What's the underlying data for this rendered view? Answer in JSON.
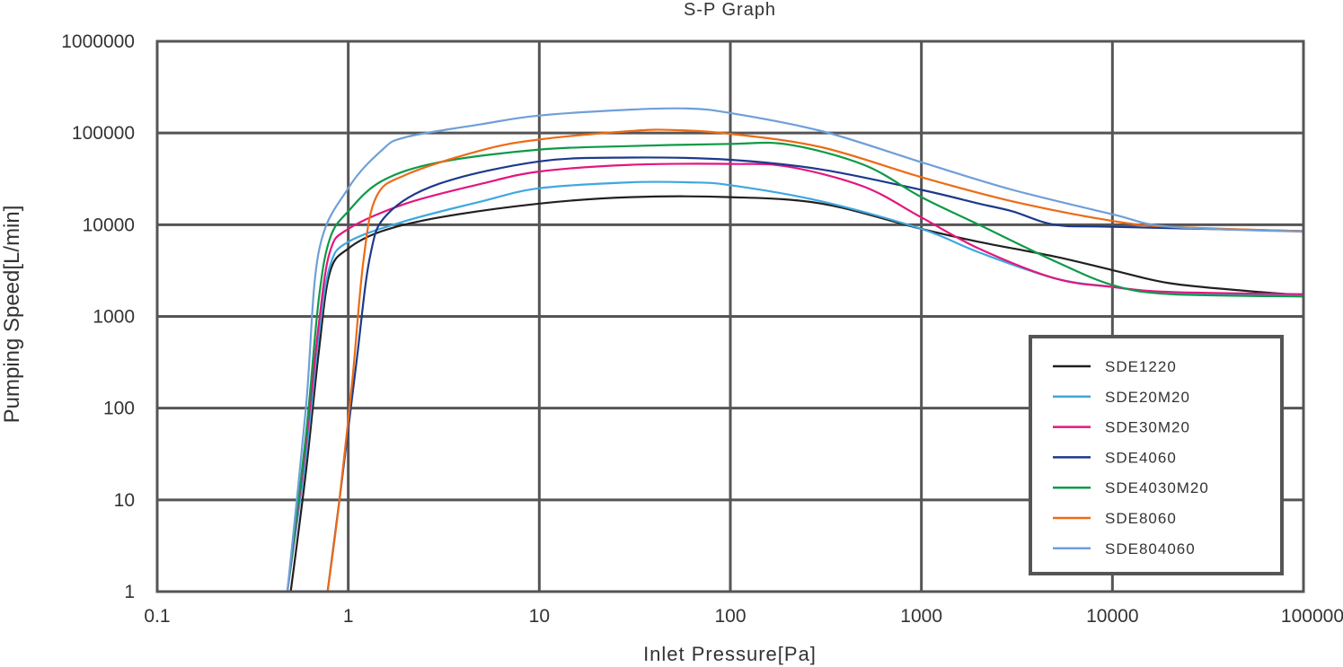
{
  "chart_data": {
    "type": "line",
    "title": "S-P Graph",
    "xlabel": "Inlet Pressure[Pa]",
    "ylabel": "Pumping Speed[L/min]",
    "x_scale": "log",
    "y_scale": "log",
    "xlim": [
      0.1,
      100000
    ],
    "ylim": [
      1,
      1000000
    ],
    "x_ticks": [
      "0.1",
      "1",
      "10",
      "100",
      "1000",
      "10000",
      "100000"
    ],
    "y_ticks": [
      "1",
      "10",
      "100",
      "1000",
      "10000",
      "100000",
      "1000000"
    ],
    "grid": true,
    "legend_position": "lower-right",
    "series": [
      {
        "name": "SDE1220",
        "color": "#231f20",
        "points": [
          [
            0.5,
            1
          ],
          [
            0.6,
            20
          ],
          [
            0.7,
            400
          ],
          [
            0.8,
            3000
          ],
          [
            1,
            5500
          ],
          [
            1.5,
            8500
          ],
          [
            3,
            12000
          ],
          [
            10,
            17000
          ],
          [
            30,
            20000
          ],
          [
            100,
            20000
          ],
          [
            300,
            17000
          ],
          [
            1000,
            9000
          ],
          [
            2000,
            6500
          ],
          [
            5000,
            4500
          ],
          [
            10000,
            3200
          ],
          [
            20000,
            2300
          ],
          [
            50000,
            1900
          ],
          [
            100000,
            1700
          ]
        ]
      },
      {
        "name": "SDE20M20",
        "color": "#3ea8df",
        "points": [
          [
            0.48,
            1
          ],
          [
            0.6,
            30
          ],
          [
            0.7,
            600
          ],
          [
            0.8,
            3500
          ],
          [
            1,
            6500
          ],
          [
            2,
            11000
          ],
          [
            5,
            18000
          ],
          [
            10,
            25000
          ],
          [
            30,
            29000
          ],
          [
            60,
            29000
          ],
          [
            100,
            27000
          ],
          [
            300,
            18000
          ],
          [
            1000,
            9000
          ],
          [
            2000,
            5000
          ],
          [
            5000,
            2600
          ],
          [
            10000,
            2100
          ],
          [
            20000,
            1800
          ],
          [
            100000,
            1700
          ]
        ]
      },
      {
        "name": "SDE30M20",
        "color": "#e3167e",
        "points": [
          [
            0.48,
            1
          ],
          [
            0.6,
            40
          ],
          [
            0.7,
            800
          ],
          [
            0.8,
            5000
          ],
          [
            1,
            9000
          ],
          [
            2,
            17000
          ],
          [
            5,
            28000
          ],
          [
            10,
            38000
          ],
          [
            30,
            45000
          ],
          [
            100,
            46000
          ],
          [
            200,
            43000
          ],
          [
            500,
            26000
          ],
          [
            1000,
            12000
          ],
          [
            2000,
            5500
          ],
          [
            5000,
            2600
          ],
          [
            10000,
            2100
          ],
          [
            20000,
            1850
          ],
          [
            100000,
            1750
          ]
        ]
      },
      {
        "name": "SDE4060",
        "color": "#1c3a8c",
        "points": [
          [
            0.78,
            1
          ],
          [
            0.9,
            10
          ],
          [
            1.1,
            300
          ],
          [
            1.3,
            4500
          ],
          [
            1.6,
            13000
          ],
          [
            3,
            28000
          ],
          [
            10,
            49000
          ],
          [
            30,
            54000
          ],
          [
            100,
            51000
          ],
          [
            300,
            40000
          ],
          [
            1000,
            24000
          ],
          [
            2000,
            17000
          ],
          [
            3000,
            14000
          ],
          [
            5000,
            10000
          ],
          [
            10000,
            9500
          ],
          [
            100000,
            8500
          ]
        ]
      },
      {
        "name": "SDE4030M20",
        "color": "#0d9a48",
        "points": [
          [
            0.48,
            1
          ],
          [
            0.6,
            50
          ],
          [
            0.7,
            1500
          ],
          [
            0.8,
            7000
          ],
          [
            1,
            14000
          ],
          [
            1.5,
            30000
          ],
          [
            3,
            48000
          ],
          [
            10,
            66000
          ],
          [
            30,
            72000
          ],
          [
            100,
            76000
          ],
          [
            200,
            75000
          ],
          [
            500,
            45000
          ],
          [
            1000,
            20000
          ],
          [
            2000,
            10000
          ],
          [
            5000,
            4000
          ],
          [
            10000,
            2200
          ],
          [
            20000,
            1750
          ],
          [
            100000,
            1650
          ]
        ]
      },
      {
        "name": "SDE8060",
        "color": "#ec6b15",
        "points": [
          [
            0.78,
            1
          ],
          [
            0.9,
            10
          ],
          [
            1.05,
            200
          ],
          [
            1.2,
            4000
          ],
          [
            1.4,
            20000
          ],
          [
            2,
            35000
          ],
          [
            5,
            65000
          ],
          [
            10,
            85000
          ],
          [
            30,
            105000
          ],
          [
            50,
            108000
          ],
          [
            100,
            98000
          ],
          [
            300,
            70000
          ],
          [
            1000,
            33000
          ],
          [
            3000,
            18000
          ],
          [
            10000,
            11000
          ],
          [
            20000,
            9500
          ],
          [
            100000,
            8500
          ]
        ]
      },
      {
        "name": "SDE804060",
        "color": "#6f9fd8",
        "points": [
          [
            0.48,
            1
          ],
          [
            0.6,
            100
          ],
          [
            0.7,
            5000
          ],
          [
            1,
            25000
          ],
          [
            1.5,
            65000
          ],
          [
            2,
            90000
          ],
          [
            5,
            125000
          ],
          [
            10,
            155000
          ],
          [
            30,
            180000
          ],
          [
            60,
            185000
          ],
          [
            100,
            165000
          ],
          [
            300,
            105000
          ],
          [
            1000,
            48000
          ],
          [
            3000,
            24000
          ],
          [
            10000,
            13000
          ],
          [
            20000,
            9500
          ],
          [
            100000,
            8400
          ]
        ]
      }
    ]
  }
}
